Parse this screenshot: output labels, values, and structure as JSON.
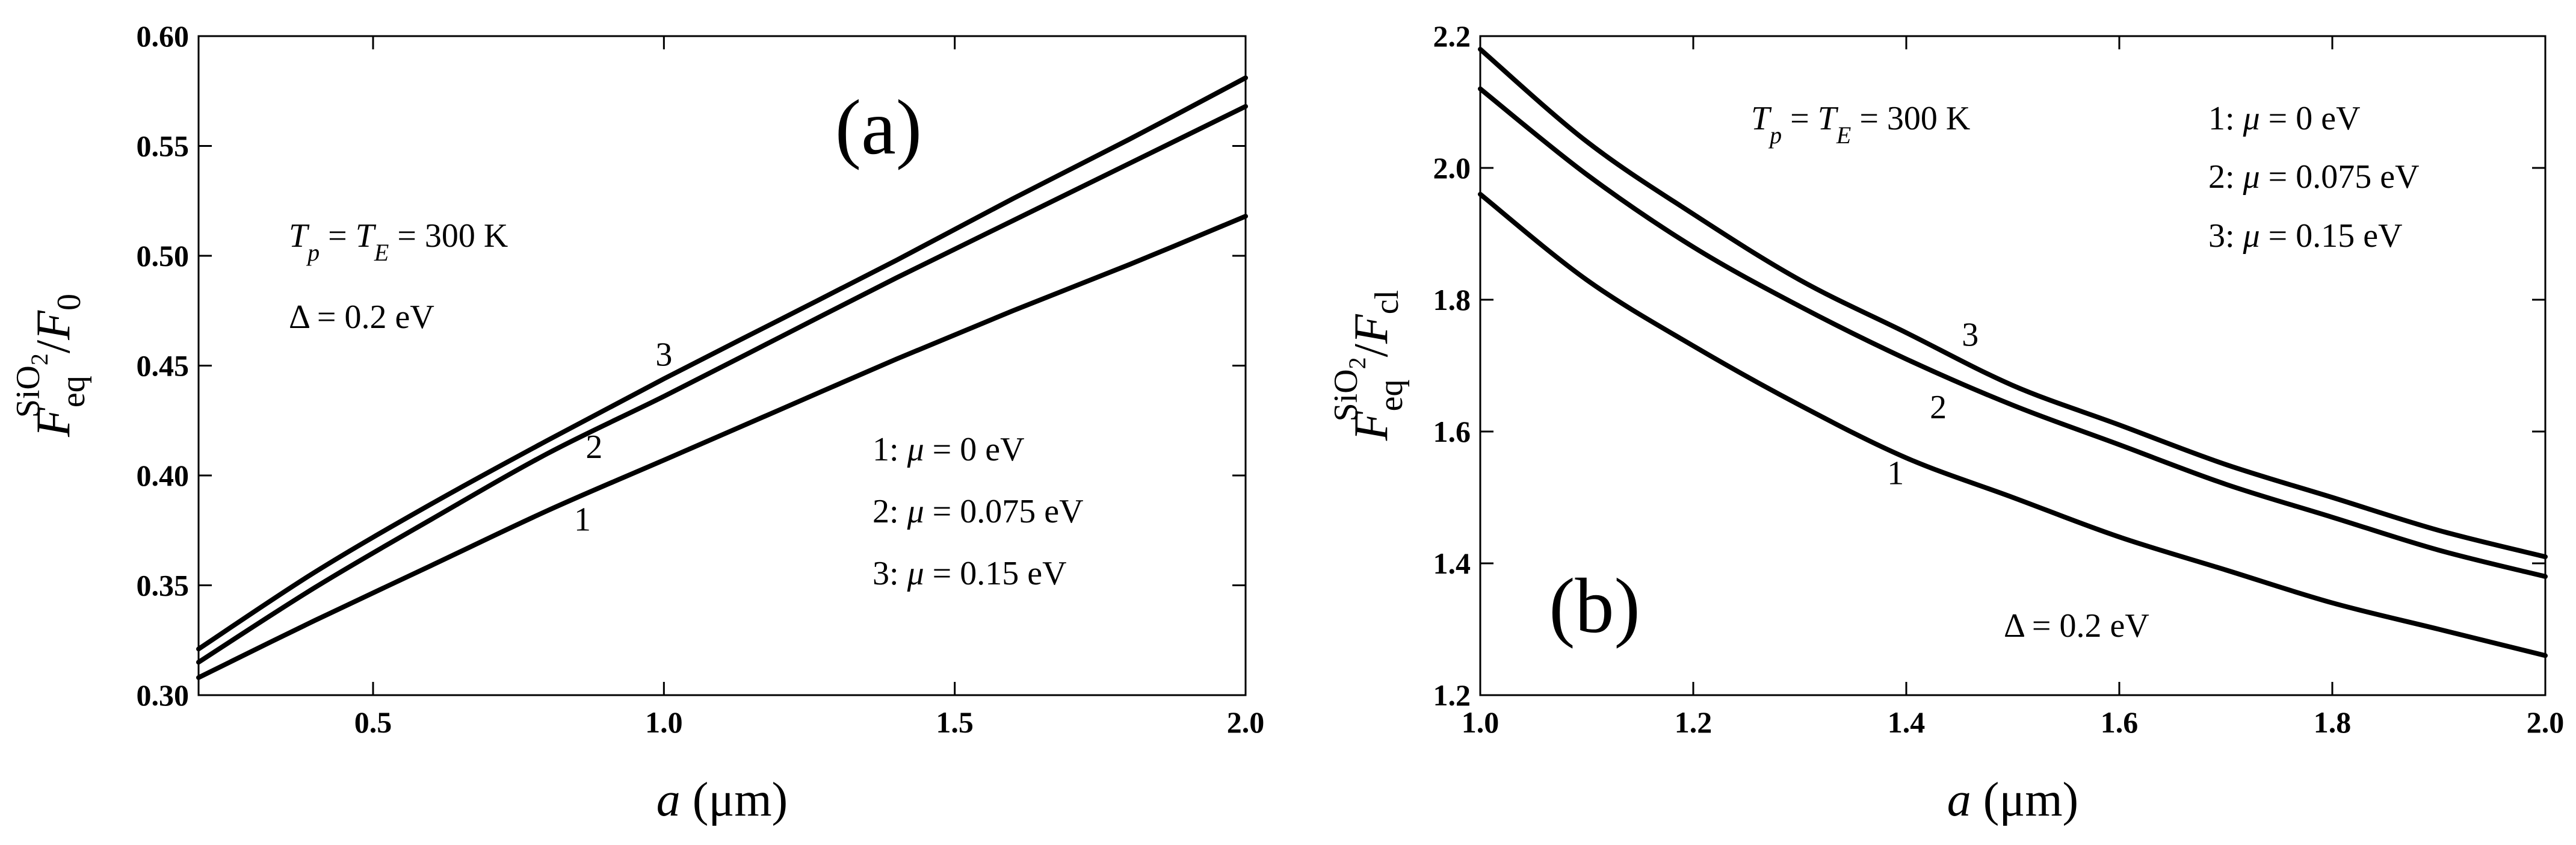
{
  "chart_data": [
    {
      "type": "line",
      "panel_label": "(a)",
      "xlabel": {
        "var": "a",
        "unit": " (μm)"
      },
      "ylabel": {
        "F": "F",
        "sup": "SiO",
        "sup_sub": "2",
        "sub": "eq",
        "slash": "/",
        "denom": "F",
        "denom_sub": "0"
      },
      "xlim": [
        0.2,
        2.0
      ],
      "ylim": [
        0.3,
        0.6
      ],
      "x_ticks": [
        "0.5",
        "1.0",
        "1.5",
        "2.0"
      ],
      "y_ticks": [
        "0.30",
        "0.35",
        "0.40",
        "0.45",
        "0.50",
        "0.55",
        "0.60"
      ],
      "annotations": {
        "temp": {
          "T1": "T",
          "T1sub": "p",
          "eq1": " = ",
          "T2": "T",
          "T2sub": "E",
          "eq2": " = 300 K"
        },
        "gap": "Δ = 0.2 eV"
      },
      "legend": [
        {
          "num": "1: ",
          "mu": "μ",
          "rest": " = 0 eV"
        },
        {
          "num": "2: ",
          "mu": "μ",
          "rest": " = 0.075 eV"
        },
        {
          "num": "3: ",
          "mu": "μ",
          "rest": " = 0.15 eV"
        }
      ],
      "x": [
        0.2,
        0.4,
        0.6,
        0.8,
        1.0,
        1.2,
        1.4,
        1.6,
        1.8,
        2.0
      ],
      "series": [
        {
          "name": "1",
          "label_at": [
            0.86,
            0.375
          ],
          "values": [
            0.308,
            0.334,
            0.359,
            0.384,
            0.407,
            0.43,
            0.453,
            0.475,
            0.496,
            0.518
          ]
        },
        {
          "name": "2",
          "label_at": [
            0.88,
            0.408
          ],
          "values": [
            0.315,
            0.349,
            0.38,
            0.41,
            0.436,
            0.463,
            0.49,
            0.516,
            0.542,
            0.568
          ]
        },
        {
          "name": "3",
          "label_at": [
            1.0,
            0.45
          ],
          "values": [
            0.321,
            0.356,
            0.387,
            0.416,
            0.444,
            0.471,
            0.498,
            0.526,
            0.553,
            0.581
          ]
        }
      ]
    },
    {
      "type": "line",
      "panel_label": "(b)",
      "xlabel": {
        "var": "a",
        "unit": " (μm)"
      },
      "ylabel": {
        "F": "F",
        "sup": "SiO",
        "sup_sub": "2",
        "sub": "eq",
        "slash": "/",
        "denom": "F",
        "denom_sub": "cl"
      },
      "xlim": [
        1.0,
        2.0
      ],
      "ylim": [
        1.2,
        2.2
      ],
      "x_ticks": [
        "1.0",
        "1.2",
        "1.4",
        "1.6",
        "1.8",
        "2.0"
      ],
      "y_ticks": [
        "1.2",
        "1.4",
        "1.6",
        "1.8",
        "2.0",
        "2.2"
      ],
      "annotations": {
        "temp": {
          "T1": "T",
          "T1sub": "p",
          "eq1": " = ",
          "T2": "T",
          "T2sub": "E",
          "eq2": " = 300 K"
        },
        "gap": "Δ = 0.2 eV"
      },
      "legend": [
        {
          "num": "1: ",
          "mu": "μ",
          "rest": " = 0 eV"
        },
        {
          "num": "2: ",
          "mu": "μ",
          "rest": " = 0.075 eV"
        },
        {
          "num": "3: ",
          "mu": "μ",
          "rest": " = 0.15 eV"
        }
      ],
      "x": [
        1.0,
        1.1,
        1.2,
        1.3,
        1.4,
        1.5,
        1.6,
        1.7,
        1.8,
        1.9,
        2.0
      ],
      "series": [
        {
          "name": "1",
          "label_at": [
            1.39,
            1.52
          ],
          "values": [
            1.96,
            1.83,
            1.73,
            1.64,
            1.56,
            1.5,
            1.44,
            1.39,
            1.34,
            1.3,
            1.26
          ]
        },
        {
          "name": "2",
          "label_at": [
            1.43,
            1.62
          ],
          "values": [
            2.12,
            1.99,
            1.88,
            1.79,
            1.71,
            1.64,
            1.58,
            1.52,
            1.47,
            1.42,
            1.38
          ]
        },
        {
          "name": "3",
          "label_at": [
            1.46,
            1.73
          ],
          "values": [
            2.18,
            2.04,
            1.93,
            1.83,
            1.75,
            1.67,
            1.61,
            1.55,
            1.5,
            1.45,
            1.41
          ]
        }
      ]
    }
  ]
}
